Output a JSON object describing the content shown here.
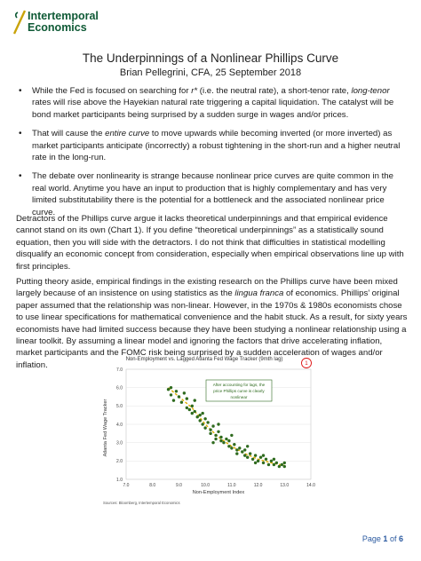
{
  "logo": {
    "line1": "Intertemporal",
    "line2": "Economics",
    "brand_color": "#0f5a36",
    "accent_color": "#c9a30a"
  },
  "title": "The Underpinnings of a Nonlinear Phillips Curve",
  "byline": "Brian Pellegrini, CFA, 25 September 2018",
  "bullets": [
    {
      "a": "While the Fed is focused on searching for ",
      "b": "r*",
      "c": " (i.e. the neutral rate), a short-tenor rate, ",
      "d": "long-tenor",
      "e": " rates will rise above the Hayekian natural rate triggering a capital liquidation.  The catalyst will be bond market participants being surprised by a sudden surge in wages and/or prices."
    },
    {
      "a": "That will cause the ",
      "b": "entire curve",
      "c": " to move upwards while becoming inverted (or more inverted) as market participants anticipate (incorrectly) a robust tightening in the short-run and a higher neutral rate in the long-run."
    },
    {
      "a": "The debate over nonlinearity is strange because nonlinear price curves are quite common in the real world.  Anytime you have an input to production that is highly complementary and has very limited substitutability there is the potential for a bottleneck and the associated nonlinear price curve."
    }
  ],
  "paragraphs": {
    "p1": "Detractors of the Phillips curve argue it lacks theoretical underpinnings and that empirical evidence cannot stand on its own (Chart 1).  If you define “theoretical underpinnings” as a statistically sound equation, then you will side with the detractors.  I do not think that difficulties in statistical modelling disqualify an economic concept from consideration, especially when empirical observations line up with first principles.",
    "p2a": "Putting theory aside, empirical findings in the existing research on the Phillips curve have been mixed largely because of an insistence on using statistics as the ",
    "p2b": "lingua franca",
    "p2c": " of economics.  Phillips’ original paper assumed that the relationship was non-linear.  However, in the 1970s & 1980s economists chose to use linear specifications for mathematical convenience and the habit stuck.  As a result, for sixty years economists have had limited success because they have been studying a nonlinear relationship using a linear toolkit.  By assuming a linear model and ignoring the factors that drive accelerating inflation, market participants and the FOMC risk being surprised by a sudden acceleration of wages and/or inflation."
  },
  "chart_data": {
    "type": "scatter",
    "title": "Non-Employment vs. Lagged Atlanta Fed Wage Tracker (9mth lag)",
    "xlabel": "Non-Employment Index",
    "ylabel": "Atlanta Fed Wage Tracker",
    "xlim": [
      7.0,
      14.0
    ],
    "ylim": [
      1.0,
      7.0
    ],
    "xticks": [
      "7.0",
      "8.0",
      "9.0",
      "10.0",
      "11.0",
      "12.0",
      "13.0",
      "14.0"
    ],
    "yticks": [
      "1.0",
      "2.0",
      "3.0",
      "4.0",
      "5.0",
      "6.0",
      "7.0"
    ],
    "annotation": [
      "After accounting for lags, the",
      "price Phillips curve is clearly",
      "nonlinear"
    ],
    "chart_number": "1",
    "source": "Sources: Bloomberg, Intertemporal Economics",
    "point_color": "#2f6b1f",
    "trend_color": "#e0b000",
    "series": [
      {
        "values": [
          [
            8.6,
            5.9
          ],
          [
            8.7,
            5.6
          ],
          [
            8.8,
            5.3
          ],
          [
            8.9,
            5.8
          ],
          [
            9.0,
            5.5
          ],
          [
            9.1,
            5.2
          ],
          [
            9.2,
            5.7
          ],
          [
            9.3,
            4.9
          ],
          [
            9.3,
            5.4
          ],
          [
            9.4,
            4.8
          ],
          [
            9.5,
            5.0
          ],
          [
            9.5,
            4.6
          ],
          [
            9.6,
            4.7
          ],
          [
            9.7,
            4.4
          ],
          [
            9.8,
            4.5
          ],
          [
            9.8,
            4.2
          ],
          [
            9.9,
            4.0
          ],
          [
            10.0,
            4.3
          ],
          [
            10.0,
            3.8
          ],
          [
            10.1,
            4.1
          ],
          [
            10.2,
            3.7
          ],
          [
            10.2,
            3.5
          ],
          [
            10.3,
            3.9
          ],
          [
            10.4,
            3.4
          ],
          [
            10.4,
            3.2
          ],
          [
            10.5,
            3.6
          ],
          [
            10.6,
            3.1
          ],
          [
            10.6,
            3.3
          ],
          [
            10.7,
            3.0
          ],
          [
            10.8,
            3.2
          ],
          [
            10.9,
            2.8
          ],
          [
            10.9,
            3.1
          ],
          [
            11.0,
            2.7
          ],
          [
            11.1,
            2.9
          ],
          [
            11.2,
            2.6
          ],
          [
            11.2,
            2.4
          ],
          [
            11.3,
            2.7
          ],
          [
            11.4,
            2.5
          ],
          [
            11.5,
            2.3
          ],
          [
            11.5,
            2.6
          ],
          [
            11.6,
            2.2
          ],
          [
            11.7,
            2.4
          ],
          [
            11.8,
            2.1
          ],
          [
            11.9,
            2.3
          ],
          [
            12.0,
            2.0
          ],
          [
            12.1,
            2.2
          ],
          [
            12.2,
            1.9
          ],
          [
            12.3,
            2.1
          ],
          [
            12.4,
            1.8
          ],
          [
            12.5,
            2.0
          ],
          [
            12.6,
            1.8
          ],
          [
            12.7,
            1.9
          ],
          [
            12.8,
            1.7
          ],
          [
            12.9,
            1.8
          ],
          [
            13.0,
            1.7
          ],
          [
            13.0,
            1.9
          ],
          [
            11.0,
            3.4
          ],
          [
            10.5,
            4.0
          ],
          [
            9.6,
            5.3
          ],
          [
            8.7,
            6.0
          ],
          [
            11.6,
            2.8
          ],
          [
            12.2,
            2.3
          ],
          [
            10.3,
            3.0
          ],
          [
            9.9,
            4.6
          ],
          [
            11.9,
            1.9
          ],
          [
            12.6,
            2.1
          ]
        ]
      }
    ],
    "trend": [
      [
        8.6,
        6.0
      ],
      [
        9.0,
        5.5
      ],
      [
        9.5,
        4.9
      ],
      [
        10.0,
        4.0
      ],
      [
        10.5,
        3.3
      ],
      [
        11.0,
        2.8
      ],
      [
        11.5,
        2.4
      ],
      [
        12.0,
        2.1
      ],
      [
        12.5,
        1.9
      ],
      [
        13.0,
        1.75
      ]
    ]
  },
  "footer": {
    "page_word": "Page",
    "page_num": "1",
    "of_word": "of",
    "total": "6"
  }
}
